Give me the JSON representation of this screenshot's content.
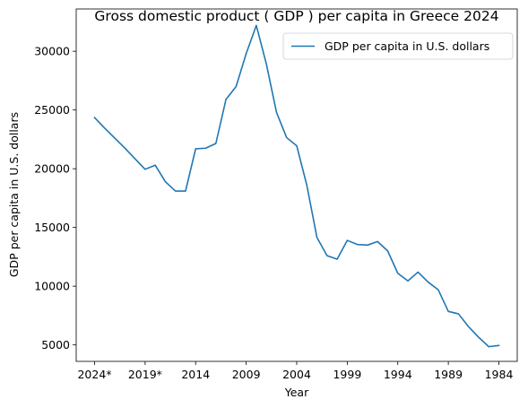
{
  "chart_data": {
    "type": "line",
    "title": "Gross domestic product ( GDP ) per capita in Greece 2024",
    "xlabel": "Year",
    "ylabel": "GDP per capita in U.S. dollars",
    "x": [
      "2024*",
      "2023*",
      "2022*",
      "2021*",
      "2020*",
      "2019*",
      "2018",
      "2017",
      "2016",
      "2015",
      "2014",
      "2013",
      "2012",
      "2011",
      "2010",
      "2009",
      "2008",
      "2007",
      "2006",
      "2005",
      "2004",
      "2003",
      "2002",
      "2001",
      "2000",
      "1999",
      "1998",
      "1997",
      "1996",
      "1995",
      "1994",
      "1993",
      "1992",
      "1991",
      "1990",
      "1989",
      "1988",
      "1987",
      "1986",
      "1985",
      "1984"
    ],
    "xticks": [
      "2024*",
      "2019*",
      "2014",
      "2009",
      "2004",
      "1999",
      "1994",
      "1989",
      "1984"
    ],
    "yticks": [
      5000,
      10000,
      15000,
      20000,
      25000,
      30000
    ],
    "ylim": [
      3600,
      33600
    ],
    "legend_position": "upper right",
    "series": [
      {
        "name": "GDP per capita in U.S. dollars",
        "color": "#1f77b4",
        "values": [
          24350,
          23450,
          22600,
          21750,
          20850,
          19950,
          20300,
          18900,
          18100,
          18100,
          21700,
          21750,
          22150,
          25900,
          27000,
          29800,
          32200,
          28900,
          24800,
          22650,
          21950,
          18600,
          14150,
          12600,
          12300,
          13900,
          13550,
          13500,
          13800,
          13000,
          11100,
          10450,
          11200,
          10350,
          9700,
          7850,
          7650,
          6550,
          5650,
          4850,
          4950
        ]
      }
    ]
  }
}
